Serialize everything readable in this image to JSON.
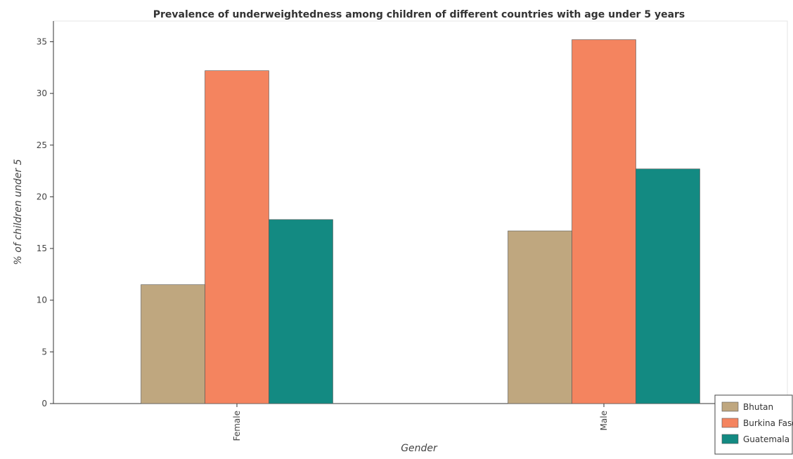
{
  "chart_data": {
    "type": "bar",
    "title": "Prevalence of underweightedness among children of different countries with age under 5 years",
    "xlabel": "Gender",
    "ylabel": "% of children under 5",
    "categories": [
      "Female",
      "Male"
    ],
    "series": [
      {
        "name": "Bhutan",
        "color": "#bfa77f",
        "values": [
          11.5,
          16.7
        ]
      },
      {
        "name": "Burkina Faso",
        "color": "#f4845f",
        "values": [
          32.2,
          35.2
        ]
      },
      {
        "name": "Guatemala",
        "color": "#138a82",
        "values": [
          17.8,
          22.7
        ]
      }
    ],
    "ylim": [
      0,
      37
    ],
    "yticks": [
      0,
      5,
      10,
      15,
      20,
      25,
      30,
      35
    ],
    "grid": false,
    "legend_position": "bottom-right"
  }
}
